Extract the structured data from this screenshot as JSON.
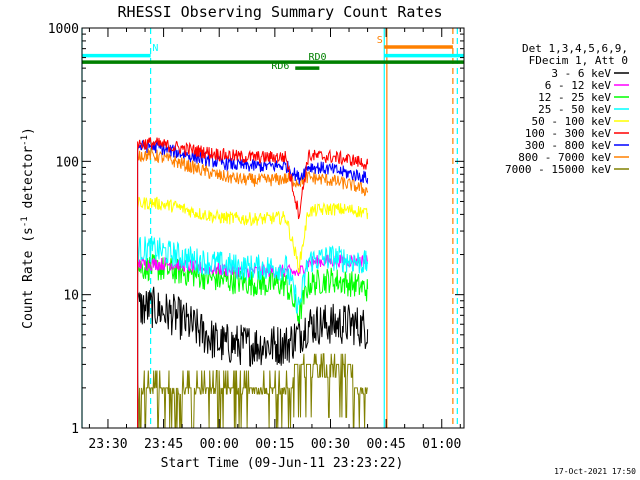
{
  "chart_data": {
    "type": "line",
    "title": "RHESSI Observing Summary Count Rates",
    "xlabel": "Start Time (09-Jun-11 23:23:22)",
    "ylabel_main": "Count Rate (s",
    "ylabel_sup1": "-1",
    "ylabel_mid": " detector",
    "ylabel_sup2": "-1",
    "ylabel_end": ")",
    "y_scale": "log",
    "ylim": [
      1,
      1000
    ],
    "xlim_minutes": [
      -7,
      96
    ],
    "x_ticks": [
      {
        "label": "23:30",
        "min": 0
      },
      {
        "label": "23:45",
        "min": 15
      },
      {
        "label": "00:00",
        "min": 30
      },
      {
        "label": "00:15",
        "min": 45
      },
      {
        "label": "00:30",
        "min": 60
      },
      {
        "label": "00:45",
        "min": 75
      },
      {
        "label": "01:00",
        "min": 90
      }
    ],
    "y_ticks": [
      {
        "label": "1",
        "value": 1
      },
      {
        "label": "10",
        "value": 10
      },
      {
        "label": "100",
        "value": 100
      },
      {
        "label": "1000",
        "value": 1000
      }
    ],
    "legend_header": [
      "Det 1,3,4,5,6,9,",
      "FDecim 1, Att 0"
    ],
    "legend_position": "right",
    "footer_date": "17-Oct-2021 17:50",
    "series": [
      {
        "name": "3 - 6 keV",
        "color": "#000000",
        "x": [
          8,
          12,
          18,
          24,
          30,
          36,
          42,
          48,
          51.5,
          54,
          60,
          66,
          70
        ],
        "y": [
          8,
          8,
          7,
          5.5,
          4.3,
          4.2,
          4.2,
          4.2,
          5,
          6,
          6,
          6,
          5.5
        ]
      },
      {
        "name": "6 - 12 keV",
        "color": "#ff00ff",
        "x": [
          8,
          12,
          18,
          24,
          30,
          36,
          42,
          48,
          51.5,
          54,
          60,
          66,
          70
        ],
        "y": [
          17,
          17,
          17,
          16,
          15.5,
          15,
          15,
          15,
          14.5,
          17.5,
          18,
          18,
          18
        ]
      },
      {
        "name": "12 - 25 keV",
        "color": "#00ff00",
        "x": [
          8,
          12,
          18,
          24,
          30,
          36,
          42,
          48,
          51.5,
          54,
          60,
          66,
          70
        ],
        "y": [
          16,
          16,
          15,
          14,
          13,
          12.5,
          12,
          12,
          7,
          12,
          13,
          12,
          11
        ]
      },
      {
        "name": "25 - 50 keV",
        "color": "#00ffff",
        "x": [
          8,
          12,
          18,
          24,
          30,
          36,
          42,
          48,
          51.5,
          54,
          60,
          66,
          70
        ],
        "y": [
          22,
          22,
          20,
          18,
          17,
          16,
          16,
          16,
          8,
          18,
          19,
          18,
          17
        ]
      },
      {
        "name": "50 - 100 keV",
        "color": "#ffff00",
        "x": [
          8,
          12,
          18,
          24,
          30,
          36,
          42,
          48,
          51.5,
          54,
          60,
          66,
          70
        ],
        "y": [
          48,
          49,
          46,
          41,
          38,
          37,
          37,
          38,
          16,
          42,
          44,
          43,
          41
        ]
      },
      {
        "name": "100 - 300 keV",
        "color": "#ff0000",
        "x": [
          8,
          12,
          18,
          24,
          30,
          36,
          42,
          48,
          51.5,
          54,
          60,
          66,
          70
        ],
        "y": [
          135,
          137,
          128,
          120,
          113,
          108,
          107,
          108,
          40,
          110,
          108,
          102,
          95
        ]
      },
      {
        "name": "300 - 800 keV",
        "color": "#0000ff",
        "x": [
          8,
          12,
          18,
          24,
          30,
          36,
          42,
          48,
          51.5,
          54,
          60,
          66,
          70
        ],
        "y": [
          128,
          130,
          118,
          107,
          98,
          93,
          92,
          93,
          75,
          92,
          87,
          80,
          75
        ]
      },
      {
        "name": "800 - 7000 keV",
        "color": "#ff8000",
        "x": [
          8,
          12,
          18,
          24,
          30,
          36,
          42,
          48,
          51.5,
          54,
          60,
          66,
          70
        ],
        "y": [
          112,
          112,
          100,
          88,
          78,
          73,
          72,
          74,
          70,
          76,
          72,
          66,
          60
        ]
      },
      {
        "name": "7000 - 15000 keV",
        "color": "#808000",
        "x": [
          8,
          12,
          18,
          24,
          30,
          36,
          42,
          48,
          51.5,
          54,
          60,
          66,
          70
        ],
        "y": [
          2,
          2.5,
          2,
          1.8,
          1.5,
          1.5,
          1.8,
          2,
          3,
          3,
          3,
          2.5,
          2
        ]
      }
    ],
    "annotations": {
      "night_label": "N",
      "saa_label": "S",
      "rd0_label": "RD0",
      "rd6_label": "RD6",
      "bars": [
        {
          "kind": "night",
          "x0": -7,
          "x1": 11.5,
          "value": 620,
          "color": "#00ffff"
        },
        {
          "kind": "saa",
          "x0": 74.5,
          "x1": 93,
          "value": 720,
          "color": "#ff8000"
        },
        {
          "kind": "night",
          "x0": 74.5,
          "x1": 96,
          "value": 620,
          "color": "#00ffff"
        },
        {
          "kind": "rd0",
          "x0": -7,
          "x1": 96,
          "value": 555,
          "color": "#008000"
        },
        {
          "kind": "rd6",
          "x0": 50.5,
          "x1": 57,
          "value": 500,
          "color": "#008000"
        }
      ],
      "vlines": [
        {
          "x": -7,
          "color": "#00ffff",
          "dashed": false
        },
        {
          "x": 11.5,
          "color": "#00ffff",
          "dashed": true
        },
        {
          "x": 74.5,
          "color": "#00ffff",
          "dashed": false
        },
        {
          "x": 75.2,
          "color": "#ff8000",
          "dashed": false
        },
        {
          "x": 93,
          "color": "#ff8000",
          "dashed": true
        },
        {
          "x": 94.2,
          "color": "#00ffff",
          "dashed": true
        }
      ]
    }
  }
}
